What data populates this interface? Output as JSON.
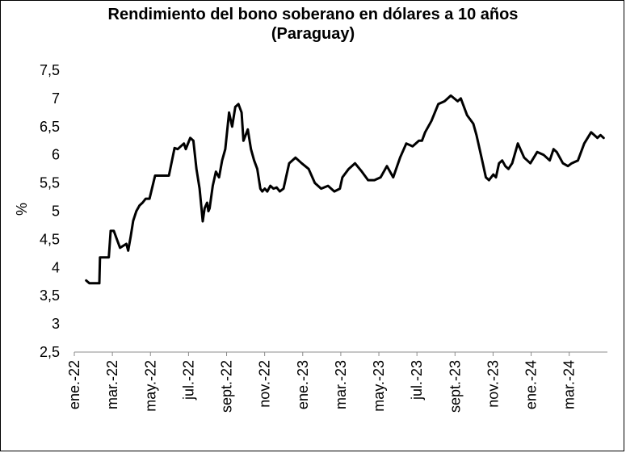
{
  "chart_data": {
    "type": "line",
    "title": "Rendimiento del bono soberano en dólares a 10 años",
    "subtitle": "(Paraguay)",
    "xlabel": "",
    "ylabel": "%",
    "ylim": [
      2.5,
      7.5
    ],
    "yticks": [
      "2,5",
      "3",
      "3,5",
      "4",
      "4,5",
      "5",
      "5,5",
      "6",
      "6,5",
      "7",
      "7,5"
    ],
    "ytick_values": [
      2.5,
      3,
      3.5,
      4,
      4.5,
      5,
      5.5,
      6,
      6.5,
      7,
      7.5
    ],
    "xticks": [
      "ene.-22",
      "mar.-22",
      "may.-22",
      "jul.-22",
      "sept.-22",
      "nov.-22",
      "ene.-23",
      "mar.-23",
      "may.-23",
      "jul.-23",
      "sept.-23",
      "nov.-23",
      "ene.-24",
      "mar.-24"
    ],
    "grid": false,
    "legend": "none",
    "series_color": "#000000",
    "x": [
      "2022-01-20",
      "2022-01-25",
      "2022-02-10",
      "2022-02-11",
      "2022-02-25",
      "2022-02-28",
      "2022-03-05",
      "2022-03-10",
      "2022-03-15",
      "2022-03-25",
      "2022-03-28",
      "2022-04-01",
      "2022-04-05",
      "2022-04-10",
      "2022-04-15",
      "2022-04-20",
      "2022-04-25",
      "2022-05-01",
      "2022-05-10",
      "2022-05-20",
      "2022-06-01",
      "2022-06-10",
      "2022-06-15",
      "2022-06-25",
      "2022-06-28",
      "2022-07-05",
      "2022-07-10",
      "2022-07-15",
      "2022-07-20",
      "2022-07-25",
      "2022-07-28",
      "2022-08-01",
      "2022-08-03",
      "2022-08-05",
      "2022-08-10",
      "2022-08-15",
      "2022-08-20",
      "2022-08-25",
      "2022-08-30",
      "2022-09-05",
      "2022-09-10",
      "2022-09-15",
      "2022-09-20",
      "2022-09-25",
      "2022-09-28",
      "2022-10-05",
      "2022-10-10",
      "2022-10-15",
      "2022-10-20",
      "2022-10-25",
      "2022-10-28",
      "2022-11-01",
      "2022-11-05",
      "2022-11-10",
      "2022-11-15",
      "2022-11-20",
      "2022-11-25",
      "2022-12-01",
      "2022-12-10",
      "2022-12-20",
      "2022-12-30",
      "2023-01-10",
      "2023-01-20",
      "2023-01-30",
      "2023-02-10",
      "2023-02-20",
      "2023-03-01",
      "2023-03-05",
      "2023-03-15",
      "2023-03-25",
      "2023-04-05",
      "2023-04-15",
      "2023-04-25",
      "2023-05-05",
      "2023-05-15",
      "2023-05-25",
      "2023-06-05",
      "2023-06-15",
      "2023-06-25",
      "2023-07-05",
      "2023-07-10",
      "2023-07-15",
      "2023-07-25",
      "2023-08-05",
      "2023-08-15",
      "2023-08-25",
      "2023-09-05",
      "2023-09-10",
      "2023-09-20",
      "2023-09-30",
      "2023-10-05",
      "2023-10-10",
      "2023-10-15",
      "2023-10-20",
      "2023-10-25",
      "2023-11-01",
      "2023-11-05",
      "2023-11-10",
      "2023-11-15",
      "2023-11-20",
      "2023-11-25",
      "2023-12-01",
      "2023-12-10",
      "2023-12-20",
      "2023-12-30",
      "2024-01-10",
      "2024-01-20",
      "2024-01-30",
      "2024-02-05",
      "2024-02-10",
      "2024-02-20",
      "2024-02-28",
      "2024-03-05",
      "2024-03-15",
      "2024-03-25",
      "2024-04-05",
      "2024-04-15",
      "2024-04-20",
      "2024-04-25"
    ],
    "series": [
      {
        "values": [
          3.77,
          3.72,
          3.72,
          4.18,
          4.18,
          4.65,
          4.65,
          4.5,
          4.35,
          4.42,
          4.3,
          4.55,
          4.83,
          5.0,
          5.1,
          5.15,
          5.22,
          5.22,
          5.63,
          5.63,
          5.63,
          6.12,
          6.1,
          6.2,
          6.1,
          6.3,
          6.25,
          5.75,
          5.4,
          4.82,
          5.05,
          5.15,
          5.0,
          5.05,
          5.45,
          5.7,
          5.6,
          5.9,
          6.1,
          6.75,
          6.5,
          6.85,
          6.9,
          6.75,
          6.25,
          6.45,
          6.1,
          5.9,
          5.75,
          5.4,
          5.35,
          5.4,
          5.35,
          5.45,
          5.4,
          5.42,
          5.35,
          5.4,
          5.85,
          5.95,
          5.85,
          5.75,
          5.5,
          5.4,
          5.45,
          5.35,
          5.4,
          5.6,
          5.75,
          5.85,
          5.7,
          5.55,
          5.55,
          5.6,
          5.8,
          5.6,
          5.95,
          6.2,
          6.15,
          6.25,
          6.25,
          6.4,
          6.6,
          6.9,
          6.95,
          7.05,
          6.95,
          7.0,
          6.7,
          6.55,
          6.35,
          6.1,
          5.85,
          5.6,
          5.55,
          5.65,
          5.6,
          5.85,
          5.9,
          5.8,
          5.75,
          5.85,
          6.2,
          5.95,
          5.85,
          6.05,
          6.0,
          5.9,
          6.1,
          6.05,
          5.85,
          5.8,
          5.85,
          5.9,
          6.2,
          6.4,
          6.3,
          6.35,
          6.3
        ]
      }
    ]
  }
}
